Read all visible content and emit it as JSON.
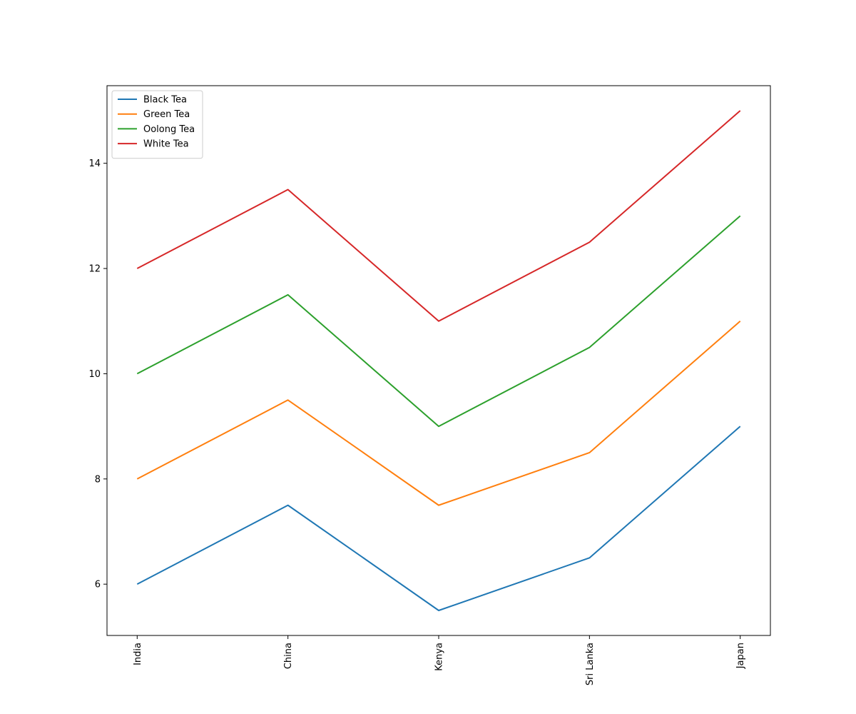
{
  "chart_data": {
    "type": "line",
    "title": "",
    "xlabel": "",
    "ylabel": "",
    "categories": [
      "India",
      "China",
      "Kenya",
      "Sri Lanka",
      "Japan"
    ],
    "series": [
      {
        "name": "Black Tea",
        "color": "#1f77b4",
        "values": [
          6,
          7.5,
          5.5,
          6.5,
          9
        ]
      },
      {
        "name": "Green Tea",
        "color": "#ff7f0e",
        "values": [
          8,
          9.5,
          7.5,
          8.5,
          11
        ]
      },
      {
        "name": "Oolong Tea",
        "color": "#2ca02c",
        "values": [
          10,
          11.5,
          9,
          10.5,
          13
        ]
      },
      {
        "name": "White Tea",
        "color": "#d62728",
        "values": [
          12,
          13.5,
          11,
          12.5,
          15
        ]
      }
    ],
    "ylim": [
      5.025,
      15.475
    ],
    "yticks": [
      6,
      8,
      10,
      12,
      14
    ],
    "xtick_rotation": 90,
    "grid": false,
    "legend_position": "upper-left"
  }
}
